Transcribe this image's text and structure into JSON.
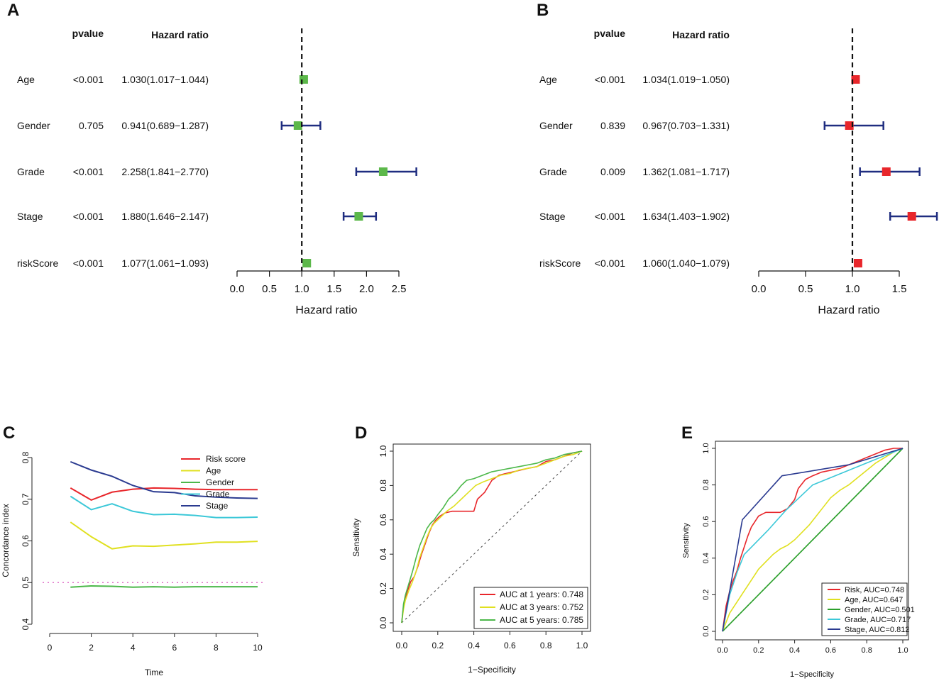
{
  "chart_data": [
    {
      "panel": "A",
      "type": "forest",
      "column_headers": {
        "pvalue": "pvalue",
        "hr": "Hazard ratio"
      },
      "rows": [
        {
          "label": "Age",
          "pvalue": "<0.001",
          "hr_text": "1.030(1.017−1.044)",
          "hr": 1.03,
          "low": 1.017,
          "high": 1.044
        },
        {
          "label": "Gender",
          "pvalue": "0.705",
          "hr_text": "0.941(0.689−1.287)",
          "hr": 0.941,
          "low": 0.689,
          "high": 1.287
        },
        {
          "label": "Grade",
          "pvalue": "<0.001",
          "hr_text": "2.258(1.841−2.770)",
          "hr": 2.258,
          "low": 1.841,
          "high": 2.77
        },
        {
          "label": "Stage",
          "pvalue": "<0.001",
          "hr_text": "1.880(1.646−2.147)",
          "hr": 1.88,
          "low": 1.646,
          "high": 2.147
        },
        {
          "label": "riskScore",
          "pvalue": "<0.001",
          "hr_text": "1.077(1.061−1.093)",
          "hr": 1.077,
          "low": 1.061,
          "high": 1.093
        }
      ],
      "xlabel": "Hazard ratio",
      "xlim": [
        0,
        2.5
      ],
      "ticks": [
        "0.0",
        "0.5",
        "1.0",
        "1.5",
        "2.0",
        "2.5"
      ],
      "reference": 1,
      "marker_color": "#5cb84a",
      "ci_color": "#1f2d80"
    },
    {
      "panel": "B",
      "type": "forest",
      "column_headers": {
        "pvalue": "pvalue",
        "hr": "Hazard ratio"
      },
      "rows": [
        {
          "label": "Age",
          "pvalue": "<0.001",
          "hr_text": "1.034(1.019−1.050)",
          "hr": 1.034,
          "low": 1.019,
          "high": 1.05
        },
        {
          "label": "Gender",
          "pvalue": "0.839",
          "hr_text": "0.967(0.703−1.331)",
          "hr": 0.967,
          "low": 0.703,
          "high": 1.331
        },
        {
          "label": "Grade",
          "pvalue": "0.009",
          "hr_text": "1.362(1.081−1.717)",
          "hr": 1.362,
          "low": 1.081,
          "high": 1.717
        },
        {
          "label": "Stage",
          "pvalue": "<0.001",
          "hr_text": "1.634(1.403−1.902)",
          "hr": 1.634,
          "low": 1.403,
          "high": 1.902
        },
        {
          "label": "riskScore",
          "pvalue": "<0.001",
          "hr_text": "1.060(1.040−1.079)",
          "hr": 1.06,
          "low": 1.04,
          "high": 1.079
        }
      ],
      "xlabel": "Hazard ratio",
      "xlim": [
        0,
        1.5
      ],
      "ticks": [
        "0.0",
        "0.5",
        "1.0",
        "1.5"
      ],
      "reference": 1,
      "marker_color": "#e8262b",
      "ci_color": "#1f2d80"
    },
    {
      "panel": "C",
      "type": "line",
      "xlabel": "Time",
      "ylabel": "Concordance index",
      "xlim": [
        0,
        10
      ],
      "ylim": [
        0.4,
        0.8
      ],
      "xticks": [
        "0",
        "2",
        "4",
        "6",
        "8",
        "10"
      ],
      "yticks": [
        "0.4",
        "0.5",
        "0.6",
        "0.7",
        "0.8"
      ],
      "x": [
        1,
        2,
        3,
        4,
        5,
        6,
        7,
        8,
        9,
        10
      ],
      "series": [
        {
          "name": "Risk score",
          "color": "#e8262b",
          "values": [
            0.727,
            0.698,
            0.717,
            0.724,
            0.727,
            0.726,
            0.724,
            0.723,
            0.723,
            0.723
          ]
        },
        {
          "name": "Age",
          "color": "#e0e020",
          "values": [
            0.645,
            0.61,
            0.581,
            0.588,
            0.587,
            0.59,
            0.593,
            0.597,
            0.597,
            0.599
          ]
        },
        {
          "name": "Gender",
          "color": "#4cb84a",
          "values": [
            0.489,
            0.492,
            0.491,
            0.489,
            0.49,
            0.489,
            0.49,
            0.49,
            0.49,
            0.49
          ]
        },
        {
          "name": "Grade",
          "color": "#3cc8d8",
          "values": [
            0.707,
            0.675,
            0.689,
            0.671,
            0.663,
            0.664,
            0.661,
            0.656,
            0.656,
            0.657
          ]
        },
        {
          "name": "Stage",
          "color": "#2a3a90",
          "values": [
            0.79,
            0.77,
            0.755,
            0.733,
            0.718,
            0.716,
            0.708,
            0.705,
            0.703,
            0.702
          ]
        }
      ],
      "reference": 0.5,
      "reference_color": "#e070c8"
    },
    {
      "panel": "D",
      "type": "roc",
      "xlabel": "1−Specificity",
      "ylabel": "Sensitivity",
      "ticks": [
        "0.0",
        "0.2",
        "0.4",
        "0.6",
        "0.8",
        "1.0"
      ],
      "series": [
        {
          "name": "AUC at 1 years: 0.748",
          "color": "#e8262b",
          "x": [
            0,
            0.01,
            0.02,
            0.03,
            0.05,
            0.07,
            0.09,
            0.11,
            0.13,
            0.15,
            0.17,
            0.19,
            0.21,
            0.24,
            0.28,
            0.32,
            0.36,
            0.4,
            0.42,
            0.46,
            0.5,
            0.54,
            0.58,
            0.62,
            0.66,
            0.7,
            0.75,
            0.8,
            0.85,
            0.9,
            0.95,
            1.0
          ],
          "y": [
            0,
            0.1,
            0.14,
            0.18,
            0.24,
            0.27,
            0.33,
            0.4,
            0.46,
            0.52,
            0.57,
            0.6,
            0.62,
            0.64,
            0.65,
            0.65,
            0.65,
            0.65,
            0.72,
            0.76,
            0.83,
            0.86,
            0.87,
            0.88,
            0.89,
            0.9,
            0.91,
            0.94,
            0.95,
            0.97,
            0.99,
            1.0
          ]
        },
        {
          "name": "AUC at 3 years: 0.752",
          "color": "#e0e020",
          "x": [
            0,
            0.01,
            0.02,
            0.04,
            0.06,
            0.08,
            0.1,
            0.12,
            0.14,
            0.16,
            0.18,
            0.21,
            0.25,
            0.29,
            0.33,
            0.37,
            0.41,
            0.45,
            0.5,
            0.55,
            0.6,
            0.65,
            0.7,
            0.75,
            0.8,
            0.85,
            0.9,
            0.95,
            1.0
          ],
          "y": [
            0,
            0.08,
            0.13,
            0.19,
            0.24,
            0.3,
            0.38,
            0.44,
            0.5,
            0.55,
            0.58,
            0.61,
            0.65,
            0.68,
            0.72,
            0.76,
            0.8,
            0.82,
            0.84,
            0.86,
            0.87,
            0.89,
            0.9,
            0.91,
            0.93,
            0.95,
            0.97,
            0.98,
            1.0
          ]
        },
        {
          "name": "AUC at 5 years: 0.785",
          "color": "#4cb84a",
          "x": [
            0,
            0.01,
            0.02,
            0.04,
            0.06,
            0.08,
            0.1,
            0.12,
            0.14,
            0.16,
            0.18,
            0.2,
            0.23,
            0.26,
            0.3,
            0.33,
            0.36,
            0.4,
            0.45,
            0.5,
            0.55,
            0.6,
            0.65,
            0.7,
            0.75,
            0.8,
            0.85,
            0.9,
            0.95,
            1.0
          ],
          "y": [
            0,
            0.11,
            0.16,
            0.23,
            0.3,
            0.38,
            0.45,
            0.5,
            0.55,
            0.58,
            0.6,
            0.63,
            0.67,
            0.72,
            0.76,
            0.8,
            0.83,
            0.84,
            0.86,
            0.88,
            0.89,
            0.9,
            0.91,
            0.92,
            0.93,
            0.95,
            0.96,
            0.98,
            0.99,
            1.0
          ]
        }
      ]
    },
    {
      "panel": "E",
      "type": "roc",
      "xlabel": "1−Specificity",
      "ylabel": "Sensitivity",
      "ticks": [
        "0.0",
        "0.2",
        "0.4",
        "0.6",
        "0.8",
        "1.0"
      ],
      "series": [
        {
          "name": "Risk, AUC=0.748",
          "color": "#e8262b",
          "x": [
            0,
            0.02,
            0.04,
            0.06,
            0.08,
            0.1,
            0.12,
            0.14,
            0.16,
            0.18,
            0.2,
            0.24,
            0.28,
            0.32,
            0.36,
            0.4,
            0.42,
            0.46,
            0.5,
            0.55,
            0.6,
            0.65,
            0.7,
            0.75,
            0.8,
            0.85,
            0.9,
            0.95,
            1.0
          ],
          "y": [
            0,
            0.14,
            0.22,
            0.28,
            0.33,
            0.4,
            0.46,
            0.52,
            0.57,
            0.6,
            0.63,
            0.65,
            0.65,
            0.65,
            0.67,
            0.72,
            0.78,
            0.83,
            0.85,
            0.87,
            0.88,
            0.89,
            0.91,
            0.93,
            0.95,
            0.97,
            0.99,
            1.0,
            1.0
          ]
        },
        {
          "name": "Age, AUC=0.647",
          "color": "#e0e020",
          "x": [
            0,
            0.04,
            0.08,
            0.12,
            0.16,
            0.2,
            0.24,
            0.28,
            0.32,
            0.36,
            0.4,
            0.44,
            0.48,
            0.52,
            0.56,
            0.6,
            0.65,
            0.7,
            0.75,
            0.8,
            0.85,
            0.9,
            0.95,
            1.0
          ],
          "y": [
            0,
            0.1,
            0.16,
            0.22,
            0.28,
            0.34,
            0.38,
            0.42,
            0.45,
            0.47,
            0.5,
            0.54,
            0.58,
            0.63,
            0.68,
            0.73,
            0.77,
            0.8,
            0.84,
            0.88,
            0.92,
            0.95,
            0.98,
            1.0
          ]
        },
        {
          "name": "Gender, AUC=0.501",
          "color": "#2ca02c",
          "x": [
            0,
            1
          ],
          "y": [
            0,
            1
          ]
        },
        {
          "name": "Grade, AUC=0.717",
          "color": "#3cc8d8",
          "x": [
            0,
            0.04,
            0.08,
            0.12,
            0.18,
            0.25,
            0.35,
            0.5,
            0.65,
            0.8,
            0.9,
            1.0
          ],
          "y": [
            0,
            0.2,
            0.32,
            0.42,
            0.48,
            0.55,
            0.66,
            0.8,
            0.86,
            0.92,
            0.96,
            1.0
          ]
        },
        {
          "name": "Stage, AUC=0.812",
          "color": "#2a3a90",
          "x": [
            0,
            0.11,
            0.33,
            0.7,
            1.0
          ],
          "y": [
            0,
            0.61,
            0.85,
            0.91,
            1.0
          ]
        }
      ]
    }
  ]
}
